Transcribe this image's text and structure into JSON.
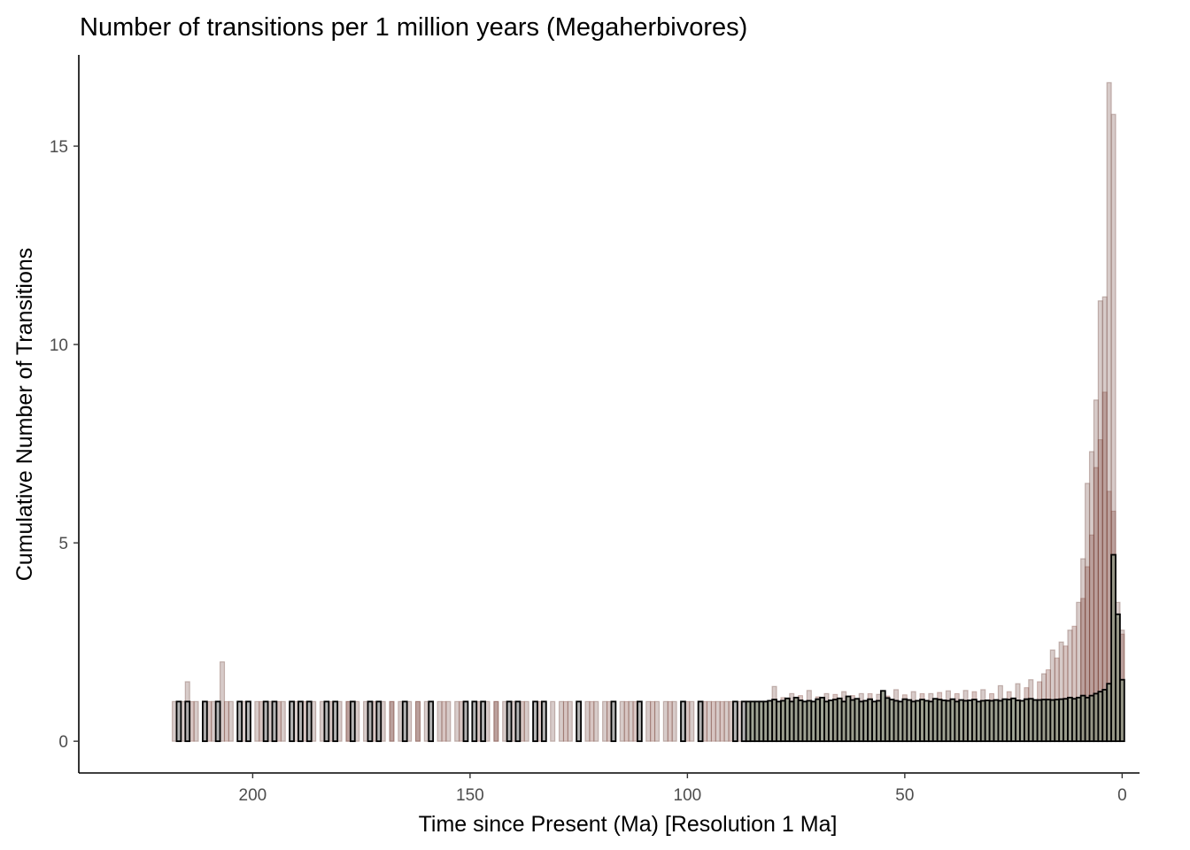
{
  "chart_data": {
    "type": "bar",
    "title": "Number of transitions per 1 million years (Megaherbivores)",
    "xlabel": "Time since Present (Ma) [Resolution 1 Ma]",
    "ylabel": "Cumulative Number of Transitions",
    "x_reversed": true,
    "xlim": [
      240,
      -4
    ],
    "ylim": [
      -0.8,
      17.3
    ],
    "x_ticks": [
      200,
      150,
      100,
      50,
      0
    ],
    "y_ticks": [
      0,
      5,
      10,
      15
    ],
    "x_tick_labels": [
      "200",
      "150",
      "100",
      "50",
      "0"
    ],
    "y_tick_labels": [
      "0",
      "5",
      "10",
      "15"
    ],
    "bin_width_ma": 1,
    "grid": false,
    "legend": "none",
    "colors": {
      "replicate_fill": "#8c6a63",
      "replicate_dark_fill": "#7a3e34",
      "outlined_fill": "#a6a6a6",
      "recent_fill": "#8f9482",
      "outline": "#000000"
    },
    "series": [
      {
        "name": "",
        "style": "outlined",
        "x": [
          217,
          215,
          211,
          208,
          203,
          201,
          197,
          195,
          191,
          189,
          187,
          183,
          181,
          177,
          173,
          171,
          165,
          159,
          151,
          149,
          147,
          141,
          139,
          135,
          133,
          125,
          117,
          111,
          101,
          97,
          89,
          87,
          86,
          85,
          84,
          83,
          82,
          81,
          80,
          79,
          78,
          77,
          76,
          75,
          74,
          73,
          72,
          71,
          70,
          69,
          68,
          67,
          66,
          65,
          64,
          63,
          62,
          61,
          60,
          59,
          58,
          57,
          56,
          55,
          54,
          53,
          52,
          51,
          50,
          49,
          48,
          47,
          46,
          45,
          44,
          43,
          42,
          41,
          40,
          39,
          38,
          37,
          36,
          35,
          34,
          33,
          32,
          31,
          30,
          29,
          28,
          27,
          26,
          25,
          24,
          23,
          22,
          21,
          20,
          19,
          18,
          17,
          16,
          15,
          14,
          13,
          12,
          11,
          10,
          9,
          8,
          7,
          6,
          5,
          4,
          3,
          2,
          1,
          0
        ],
        "values": [
          1,
          1,
          1,
          1,
          1,
          1,
          1,
          1,
          1,
          1,
          1,
          1,
          1,
          1,
          1,
          1,
          1,
          1,
          1,
          1,
          1,
          1,
          1,
          1,
          1,
          1,
          1,
          1,
          1,
          1,
          1,
          1,
          1,
          1,
          1,
          1,
          1,
          1.02,
          1.05,
          1,
          1.02,
          1.08,
          1,
          1.1,
          1.03,
          1,
          1.02,
          1,
          1.06,
          1.1,
          1,
          1.03,
          1.05,
          1.08,
          1,
          1.13,
          1.04,
          1.07,
          1,
          1.02,
          1.06,
          1,
          1.02,
          1.27,
          1.09,
          1.05,
          1.02,
          1,
          1.06,
          1.04,
          1,
          1.02,
          1.05,
          1.02,
          1,
          1.07,
          1.05,
          1.03,
          1.02,
          1.06,
          1,
          1.04,
          1.02,
          1.03,
          1.05,
          1,
          1.02,
          1.03,
          1.02,
          1.04,
          1.02,
          1.06,
          1.05,
          1.08,
          1.03,
          1.02,
          1.06,
          1.07,
          1.04,
          1.04,
          1.05,
          1.05,
          1.04,
          1.05,
          1.06,
          1.07,
          1.1,
          1.07,
          1.1,
          1.15,
          1.1,
          1.15,
          1.2,
          1.25,
          1.3,
          1.45,
          4.7,
          3.2,
          1.55
        ]
      },
      {
        "name": "",
        "style": "replicate-light",
        "x": [
          218,
          216,
          215,
          213,
          211,
          209,
          207,
          205,
          202,
          199,
          196,
          193,
          190,
          186,
          184,
          180,
          178,
          176,
          174,
          170,
          168,
          166,
          164,
          162,
          160,
          157,
          155,
          153,
          146,
          144,
          142,
          140,
          137,
          131,
          129,
          127,
          123,
          121,
          119,
          115,
          113,
          109,
          107,
          105,
          103,
          99,
          95,
          93,
          91,
          88,
          80,
          76,
          72,
          68,
          64,
          60,
          56,
          52,
          48,
          44,
          40,
          36,
          32,
          28,
          24,
          21,
          18,
          16,
          14,
          12,
          10,
          9,
          8,
          7,
          6,
          5,
          4,
          3,
          2,
          1,
          0
        ],
        "values": [
          1,
          1,
          1.5,
          1,
          1,
          1,
          2,
          1,
          1,
          1,
          1,
          1,
          1,
          1,
          1,
          1,
          1,
          1,
          1,
          1,
          1,
          1,
          1,
          1,
          1,
          1,
          1,
          1,
          1,
          1,
          1,
          1,
          1,
          1,
          1,
          1,
          1,
          1,
          1,
          1,
          1,
          1,
          1,
          1,
          1,
          1,
          1,
          1,
          1,
          1,
          1.38,
          1.2,
          1.28,
          1.2,
          1.25,
          1.2,
          1.18,
          1.3,
          1.25,
          1.2,
          1.27,
          1.28,
          1.3,
          1.4,
          1.45,
          1.55,
          1.7,
          2.3,
          2.5,
          2.8,
          3.5,
          4.6,
          6.5,
          7.3,
          8.6,
          11.1,
          11.2,
          16.6,
          15.8,
          3.5,
          2.8
        ]
      },
      {
        "name": "",
        "style": "replicate-dark",
        "x": [
          214,
          210,
          206,
          198,
          194,
          188,
          182,
          178,
          172,
          168,
          162,
          156,
          152,
          148,
          144,
          138,
          134,
          128,
          122,
          118,
          114,
          112,
          108,
          104,
          100,
          96,
          94,
          92,
          90,
          78,
          74,
          70,
          66,
          62,
          58,
          54,
          50,
          46,
          42,
          38,
          34,
          30,
          26,
          22,
          19,
          17,
          15,
          13,
          11,
          9,
          8,
          7,
          6,
          5,
          4,
          3,
          2,
          1,
          0
        ],
        "values": [
          1,
          1,
          1,
          1,
          1,
          1,
          1,
          1,
          1,
          1,
          1,
          1,
          1,
          1,
          1,
          1,
          1,
          1,
          1,
          1,
          1,
          1,
          1,
          1,
          1,
          1,
          1,
          1,
          1,
          1.1,
          1.15,
          1.12,
          1.18,
          1.15,
          1.2,
          1.14,
          1.17,
          1.2,
          1.23,
          1.2,
          1.25,
          1.2,
          1.25,
          1.35,
          1.5,
          1.8,
          2.1,
          2.4,
          2.9,
          3.6,
          4.4,
          5.2,
          6.9,
          7.6,
          8.8,
          6.3,
          5.8,
          3.1,
          2.7
        ]
      }
    ]
  }
}
